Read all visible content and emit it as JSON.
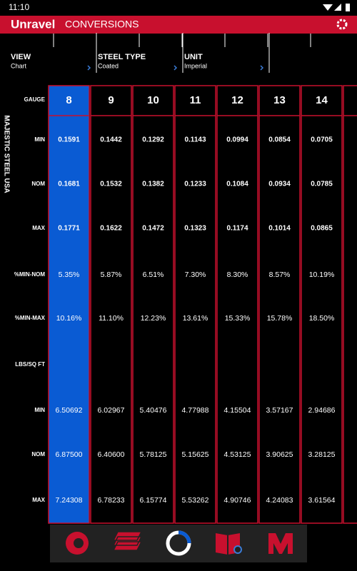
{
  "header": {
    "time": "11:10",
    "brand": "Unravel",
    "title": "CONVERSIONS"
  },
  "selectors": [
    {
      "label": "VIEW",
      "value": "Chart"
    },
    {
      "label": "STEEL TYPE",
      "value": "Coated"
    },
    {
      "label": "UNIT",
      "value": "Imperial"
    }
  ],
  "side_label": "MAJESTIC STEEL USA",
  "table": {
    "header_label": "GAUGE",
    "columns": [
      "8",
      "9",
      "10",
      "11",
      "12",
      "13",
      "14"
    ],
    "rows": [
      {
        "label": "MIN",
        "values": [
          "0.1591",
          "0.1442",
          "0.1292",
          "0.1143",
          "0.0994",
          "0.0854",
          "0.0705"
        ]
      },
      {
        "label": "NOM",
        "values": [
          "0.1681",
          "0.1532",
          "0.1382",
          "0.1233",
          "0.1084",
          "0.0934",
          "0.0785"
        ]
      },
      {
        "label": "MAX",
        "values": [
          "0.1771",
          "0.1622",
          "0.1472",
          "0.1323",
          "0.1174",
          "0.1014",
          "0.0865"
        ]
      },
      {
        "label": "%MIN-NOM",
        "values": [
          "5.35%",
          "5.87%",
          "6.51%",
          "7.30%",
          "8.30%",
          "8.57%",
          "10.19%"
        ]
      },
      {
        "label": "%MIN-MAX",
        "values": [
          "10.16%",
          "11.10%",
          "12.23%",
          "13.61%",
          "15.33%",
          "15.78%",
          "18.50%"
        ]
      }
    ],
    "section_label": "LBS/SQ FT",
    "section_rows": [
      {
        "label": "MIN",
        "values": [
          "6.50692",
          "6.02967",
          "5.40476",
          "4.77988",
          "4.15504",
          "3.57167",
          "2.94686"
        ]
      },
      {
        "label": "NOM",
        "values": [
          "6.87500",
          "6.40600",
          "5.78125",
          "5.15625",
          "4.53125",
          "3.90625",
          "3.28125"
        ]
      },
      {
        "label": "MAX",
        "values": [
          "7.24308",
          "6.78233",
          "6.15774",
          "5.53262",
          "4.90746",
          "4.24083",
          "3.61564"
        ]
      }
    ]
  }
}
